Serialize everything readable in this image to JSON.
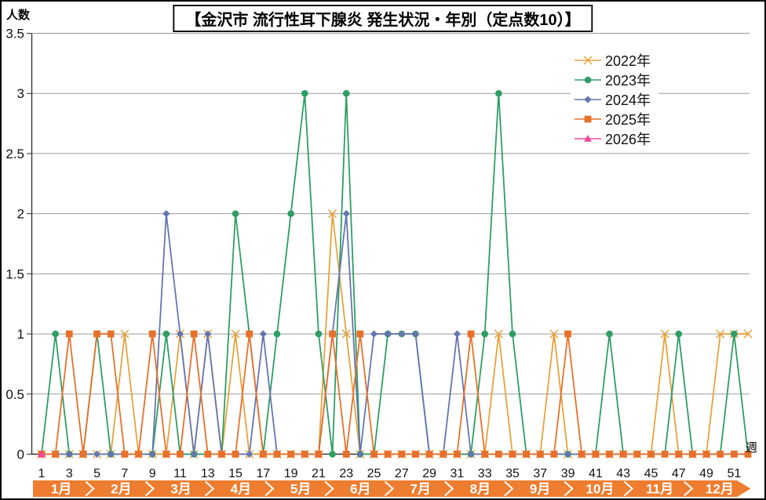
{
  "title": "【金沢市 流行性耳下腺炎 発生状況・年別（定点数10）】",
  "y_axis": {
    "title": "人数",
    "ticks": [
      "3.5",
      "3",
      "2.5",
      "2",
      "1.5",
      "1",
      "0.5",
      "0"
    ],
    "min": 0,
    "max": 3.5,
    "step": 0.5
  },
  "x_axis": {
    "title": "週",
    "weeks": 52,
    "tick_labels": [
      "1",
      "3",
      "5",
      "7",
      "9",
      "11",
      "13",
      "15",
      "17",
      "19",
      "21",
      "23",
      "25",
      "27",
      "29",
      "31",
      "33",
      "35",
      "37",
      "39",
      "41",
      "43",
      "45",
      "47",
      "49",
      "51"
    ]
  },
  "months": {
    "labels": [
      "1月",
      "2月",
      "3月",
      "4月",
      "5月",
      "6月",
      "7月",
      "8月",
      "9月",
      "10月",
      "11月",
      "12月"
    ],
    "band_color": "#EE7D2F",
    "text_color": "#FFFFFF"
  },
  "colors": {
    "grid": "#9B9B9B",
    "axis": "#333333",
    "tick_text": "#111111"
  },
  "chart_data": {
    "type": "line",
    "title": "【金沢市 流行性耳下腺炎 発生状況・年別（定点数10）】",
    "xlabel": "週",
    "ylabel": "人数",
    "ylim": [
      0,
      3.5
    ],
    "x_range_weeks": [
      1,
      52
    ],
    "grid": true,
    "legend_position": "top-right",
    "series": [
      {
        "name": "2022年",
        "color": "#E5A33D",
        "marker": "x",
        "values": [
          0,
          0,
          0,
          0,
          0,
          0,
          1,
          0,
          0,
          0,
          1,
          0,
          1,
          0,
          1,
          0,
          0,
          0,
          0,
          0,
          0,
          2,
          1,
          0,
          0,
          0,
          0,
          0,
          0,
          0,
          0,
          0,
          0,
          1,
          0,
          0,
          0,
          1,
          0,
          0,
          0,
          0,
          0,
          0,
          0,
          1,
          0,
          0,
          0,
          1,
          1,
          1
        ]
      },
      {
        "name": "2023年",
        "color": "#2F9E63",
        "marker": "circle",
        "values": [
          0,
          1,
          0,
          0,
          1,
          0,
          0,
          0,
          0,
          1,
          0,
          0,
          0,
          0,
          2,
          1,
          0,
          1,
          2,
          3,
          1,
          0,
          3,
          0,
          0,
          1,
          1,
          1,
          0,
          0,
          0,
          0,
          1,
          3,
          1,
          0,
          0,
          0,
          0,
          0,
          0,
          1,
          0,
          0,
          0,
          0,
          1,
          0,
          0,
          0,
          1,
          0
        ]
      },
      {
        "name": "2024年",
        "color": "#6576AE",
        "marker": "diamond",
        "values": [
          0,
          0,
          0,
          0,
          0,
          0,
          0,
          0,
          0,
          2,
          1,
          0,
          1,
          0,
          0,
          0,
          1,
          0,
          0,
          0,
          0,
          1,
          2,
          0,
          1,
          1,
          1,
          1,
          0,
          0,
          1,
          0,
          0,
          0,
          0,
          0,
          0,
          0,
          0,
          0,
          0,
          0,
          0,
          0,
          0,
          0,
          0,
          0,
          0,
          0,
          0,
          0
        ]
      },
      {
        "name": "2025年",
        "color": "#E8702A",
        "marker": "square",
        "values": [
          0,
          0,
          1,
          0,
          1,
          1,
          0,
          0,
          1,
          0,
          0,
          1,
          0,
          0,
          0,
          1,
          0,
          0,
          0,
          0,
          0,
          1,
          0,
          1,
          0,
          0,
          0,
          0,
          0,
          0,
          0,
          1,
          0,
          0,
          0,
          0,
          0,
          0,
          1,
          0,
          0,
          0,
          0,
          0,
          0,
          0,
          0,
          0,
          0,
          0,
          0,
          0
        ]
      },
      {
        "name": "2026年",
        "color": "#EF4A9E",
        "marker": "triangle",
        "values": [
          0
        ]
      }
    ]
  }
}
